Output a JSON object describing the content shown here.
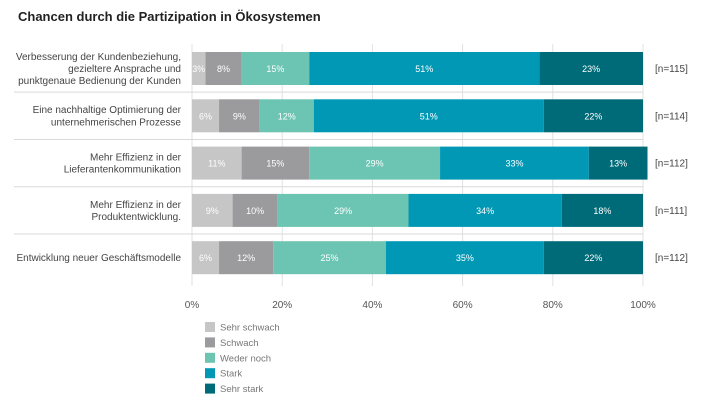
{
  "chart_data": {
    "type": "bar",
    "orientation": "horizontal",
    "stacked": true,
    "title": "Chancen durch die Partizipation in Ökosystemen",
    "categories": [
      [
        "Verbesserung der Kundenbeziehung,",
        "gezieltere Ansprache und",
        "punktgenaue Bedienung der Kunden"
      ],
      [
        "Eine nachhaltige Optimierung der",
        "unternehmerischen Prozesse"
      ],
      [
        "Mehr Effizienz in der",
        "Lieferantenkommunikation"
      ],
      [
        "Mehr Effizienz in der",
        "Produktentwicklung."
      ],
      [
        "Entwicklung neuer Geschäftsmodelle"
      ]
    ],
    "n_labels": [
      "[n=115]",
      "[n=114]",
      "[n=112]",
      "[n=111]",
      "[n=112]"
    ],
    "series": [
      {
        "name": "Sehr schwach",
        "color": "#c6c6c6",
        "values": [
          3,
          6,
          11,
          9,
          6
        ]
      },
      {
        "name": "Schwach",
        "color": "#9b9b9e",
        "values": [
          8,
          9,
          15,
          10,
          12
        ]
      },
      {
        "name": "Weder noch",
        "color": "#6cc4b2",
        "values": [
          15,
          12,
          29,
          29,
          25
        ]
      },
      {
        "name": "Stark",
        "color": "#0098b5",
        "values": [
          51,
          51,
          33,
          34,
          35
        ]
      },
      {
        "name": "Sehr stark",
        "color": "#006b78",
        "values": [
          23,
          22,
          13,
          18,
          22
        ]
      }
    ],
    "xlim": [
      0,
      100
    ],
    "xticks": [
      "0%",
      "20%",
      "40%",
      "60%",
      "80%",
      "100%"
    ],
    "value_suffix": "%",
    "legend_position": "bottom-left",
    "grid": true
  }
}
